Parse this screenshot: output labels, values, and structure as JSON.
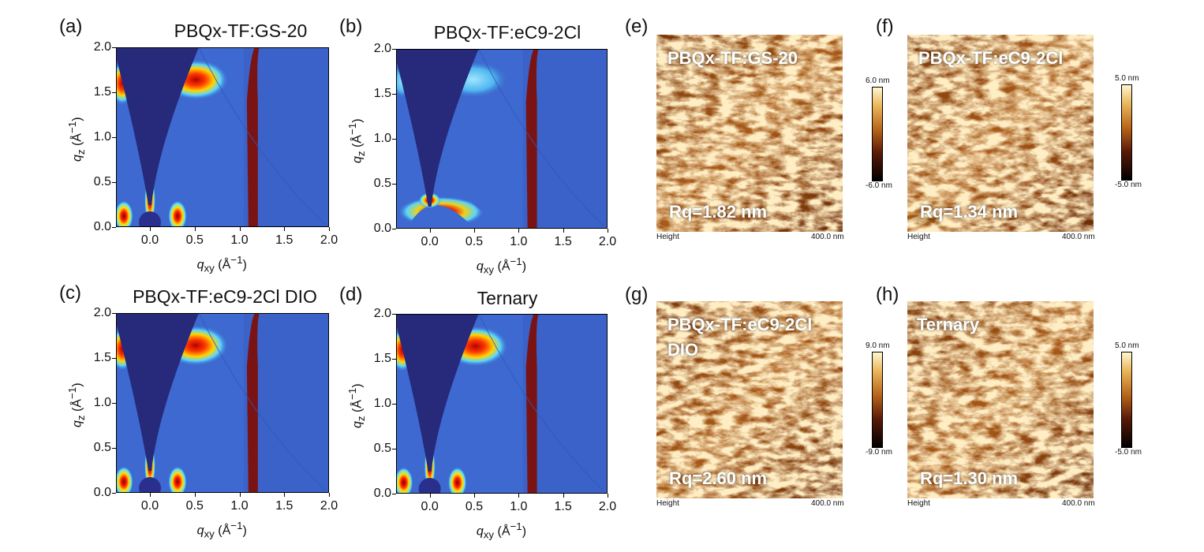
{
  "giwaxs": {
    "colors": {
      "background": "#3a62c8",
      "shadow": "#27297a",
      "stripe": "#7a1414"
    },
    "x_ticks": [
      "0.0",
      "0.5",
      "1.0",
      "1.5",
      "2.0"
    ],
    "y_ticks": [
      "0.0",
      "0.5",
      "1.0",
      "1.5",
      "2.0"
    ],
    "panels": [
      {
        "letter": "(a)",
        "title": "PBQx-TF:GS-20"
      },
      {
        "letter": "(b)",
        "title": "PBQx-TF:eC9-2Cl"
      },
      {
        "letter": "(c)",
        "title": "PBQx-TF:eC9-2Cl  DIO"
      },
      {
        "letter": "(d)",
        "title": "Ternary"
      }
    ]
  },
  "afm": {
    "height_label": "Height",
    "scale_label": "400.0 nm",
    "panels": [
      {
        "letter": "(e)",
        "title_lines": [
          "PBQx-TF:GS-20"
        ],
        "rq": "Rq=1.82 nm",
        "cbar_max": "6.0 nm",
        "cbar_min": "-6.0 nm"
      },
      {
        "letter": "(f)",
        "title_lines": [
          "PBQx-TF:eC9-2Cl"
        ],
        "rq": "Rq=1.34 nm",
        "cbar_max": "5.0 nm",
        "cbar_min": "-5.0 nm"
      },
      {
        "letter": "(g)",
        "title_lines": [
          "PBQx-TF:eC9-2Cl",
          "DIO"
        ],
        "rq": "Rq=2.60 nm",
        "cbar_max": "9.0 nm",
        "cbar_min": "-9.0 nm"
      },
      {
        "letter": "(h)",
        "title_lines": [
          "Ternary"
        ],
        "rq": "Rq=1.30 nm",
        "cbar_max": "5.0 nm",
        "cbar_min": "-5.0 nm"
      }
    ]
  }
}
